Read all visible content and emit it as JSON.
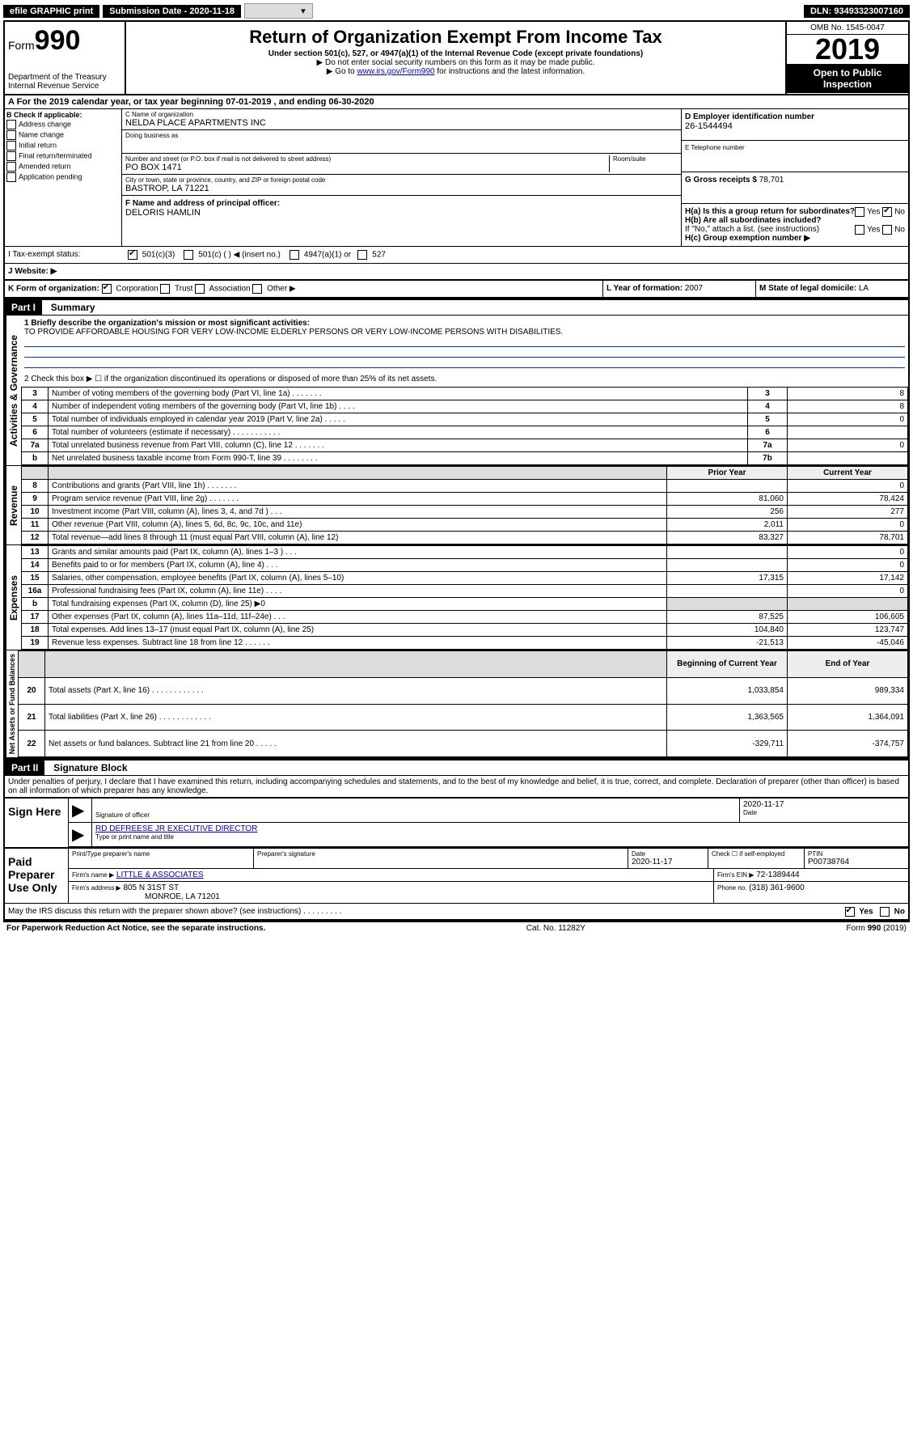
{
  "topbar": {
    "efile": "efile GRAPHIC print",
    "submission": "Submission Date - 2020-11-18",
    "dln": "DLN: 93493323007160"
  },
  "header": {
    "form_label": "Form",
    "form_number": "990",
    "dept": "Department of the Treasury\nInternal Revenue Service",
    "title": "Return of Organization Exempt From Income Tax",
    "subtitle": "Under section 501(c), 527, or 4947(a)(1) of the Internal Revenue Code (except private foundations)",
    "note1": "▶ Do not enter social security numbers on this form as it may be made public.",
    "note2_pre": "▶ Go to ",
    "note2_link": "www.irs.gov/Form990",
    "note2_post": " for instructions and the latest information.",
    "omb": "OMB No. 1545-0047",
    "year": "2019",
    "inspection": "Open to Public Inspection"
  },
  "periodA": "A For the 2019 calendar year, or tax year beginning 07-01-2019    , and ending 06-30-2020",
  "blockB": {
    "title": "B Check if applicable:",
    "opts": [
      "Address change",
      "Name change",
      "Initial return",
      "Final return/terminated",
      "Amended return",
      "Application pending"
    ]
  },
  "entity": {
    "c_label": "C Name of organization",
    "name": "NELDA PLACE APARTMENTS INC",
    "dba_label": "Doing business as",
    "addr_label": "Number and street (or P.O. box if mail is not delivered to street address)",
    "room_label": "Room/suite",
    "addr": "PO BOX 1471",
    "city_label": "City or town, state or province, country, and ZIP or foreign postal code",
    "city": "BASTROP, LA  71221",
    "f_label": "F Name and address of principal officer:",
    "officer": "DELORIS HAMLIN"
  },
  "rightcol": {
    "d_label": "D Employer identification number",
    "ein": "26-1544494",
    "e_label": "E Telephone number",
    "g_label": "G Gross receipts $",
    "g_val": "78,701",
    "ha": "H(a)  Is this a group return for subordinates?",
    "hb": "H(b)  Are all subordinates included?",
    "h_note": "If \"No,\" attach a list. (see instructions)",
    "hc": "H(c)  Group exemption number ▶"
  },
  "rowI": {
    "label": "I    Tax-exempt status:",
    "opt1": "501(c)(3)",
    "opt2": "501(c) (   ) ◀ (insert no.)",
    "opt3": "4947(a)(1) or",
    "opt4": "527"
  },
  "rowJ": {
    "label": "J    Website: ▶"
  },
  "rowK": {
    "label": "K Form of organization:",
    "opts": [
      "Corporation",
      "Trust",
      "Association",
      "Other ▶"
    ],
    "l_label": "L Year of formation:",
    "l_val": "2007",
    "m_label": "M State of legal domicile:",
    "m_val": "LA"
  },
  "part1": {
    "header": "Part I",
    "title": "Summary",
    "q1": "1  Briefly describe the organization's mission or most significant activities:",
    "mission": "TO PROVIDE AFFORDABLE HOUSING FOR VERY LOW-INCOME ELDERLY PERSONS OR VERY LOW-INCOME PERSONS WITH DISABILITIES.",
    "q2": "2   Check this box ▶ ☐  if the organization discontinued its operations or disposed of more than 25% of its net assets.",
    "lines_gov": [
      {
        "n": "3",
        "t": "Number of voting members of the governing body (Part VI, line 1a)   .    .    .    .    .    .    .",
        "b": "3",
        "v": "8"
      },
      {
        "n": "4",
        "t": "Number of independent voting members of the governing body (Part VI, line 1b)   .    .    .    .",
        "b": "4",
        "v": "8"
      },
      {
        "n": "5",
        "t": "Total number of individuals employed in calendar year 2019 (Part V, line 2a)   .    .    .    .    .",
        "b": "5",
        "v": "0"
      },
      {
        "n": "6",
        "t": "Total number of volunteers (estimate if necessary)   .    .    .    .    .    .    .    .    .    .    .",
        "b": "6",
        "v": ""
      },
      {
        "n": "7a",
        "t": "Total unrelated business revenue from Part VIII, column (C), line 12   .    .    .    .    .    .    .",
        "b": "7a",
        "v": "0"
      },
      {
        "n": "b",
        "t": "Net unrelated business taxable income from Form 990-T, line 39   .    .    .    .    .    .    .    .",
        "b": "7b",
        "v": ""
      }
    ],
    "col_prior": "Prior Year",
    "col_current": "Current Year",
    "revenue": [
      {
        "n": "8",
        "t": "Contributions and grants (Part VIII, line 1h)   .    .    .    .    .    .    .",
        "p": "",
        "c": "0"
      },
      {
        "n": "9",
        "t": "Program service revenue (Part VIII, line 2g)   .    .    .    .    .    .    .",
        "p": "81,060",
        "c": "78,424"
      },
      {
        "n": "10",
        "t": "Investment income (Part VIII, column (A), lines 3, 4, and 7d )   .    .    .",
        "p": "256",
        "c": "277"
      },
      {
        "n": "11",
        "t": "Other revenue (Part VIII, column (A), lines 5, 6d, 8c, 9c, 10c, and 11e)",
        "p": "2,011",
        "c": "0"
      },
      {
        "n": "12",
        "t": "Total revenue—add lines 8 through 11 (must equal Part VIII, column (A), line 12)",
        "p": "83,327",
        "c": "78,701"
      }
    ],
    "expenses": [
      {
        "n": "13",
        "t": "Grants and similar amounts paid (Part IX, column (A), lines 1–3 )   .    .    .",
        "p": "",
        "c": "0"
      },
      {
        "n": "14",
        "t": "Benefits paid to or for members (Part IX, column (A), line 4)   .    .    .",
        "p": "",
        "c": "0"
      },
      {
        "n": "15",
        "t": "Salaries, other compensation, employee benefits (Part IX, column (A), lines 5–10)",
        "p": "17,315",
        "c": "17,142"
      },
      {
        "n": "16a",
        "t": "Professional fundraising fees (Part IX, column (A), line 11e)   .    .    .    .",
        "p": "",
        "c": "0"
      },
      {
        "n": "b",
        "t": "Total fundraising expenses (Part IX, column (D), line 25) ▶0",
        "p": "gray",
        "c": "gray"
      },
      {
        "n": "17",
        "t": "Other expenses (Part IX, column (A), lines 11a–11d, 11f–24e)   .    .    .",
        "p": "87,525",
        "c": "106,605"
      },
      {
        "n": "18",
        "t": "Total expenses. Add lines 13–17 (must equal Part IX, column (A), line 25)",
        "p": "104,840",
        "c": "123,747"
      },
      {
        "n": "19",
        "t": "Revenue less expenses. Subtract line 18 from line 12   .    .    .    .    .    .",
        "p": "-21,513",
        "c": "-45,046"
      }
    ],
    "col_begin": "Beginning of Current Year",
    "col_end": "End of Year",
    "netassets": [
      {
        "n": "20",
        "t": "Total assets (Part X, line 16)   .    .    .    .    .    .    .    .    .    .    .    .",
        "p": "1,033,854",
        "c": "989,334"
      },
      {
        "n": "21",
        "t": "Total liabilities (Part X, line 26)   .    .    .    .    .    .    .    .    .    .    .    .",
        "p": "1,363,565",
        "c": "1,364,091"
      },
      {
        "n": "22",
        "t": "Net assets or fund balances. Subtract line 21 from line 20   .    .    .    .    .",
        "p": "-329,711",
        "c": "-374,757"
      }
    ],
    "vtext_gov": "Activities & Governance",
    "vtext_rev": "Revenue",
    "vtext_exp": "Expenses",
    "vtext_net": "Net Assets or Fund Balances"
  },
  "part2": {
    "header": "Part II",
    "title": "Signature Block",
    "perjury": "Under penalties of perjury, I declare that I have examined this return, including accompanying schedules and statements, and to the best of my knowledge and belief, it is true, correct, and complete. Declaration of preparer (other than officer) is based on all information of which preparer has any knowledge.",
    "sign_here": "Sign Here",
    "sig_officer": "Signature of officer",
    "sig_date": "2020-11-17",
    "date_label": "Date",
    "officer_name": "RD DEFREESE JR EXECUTIVE DIRECTOR",
    "type_label": "Type or print name and title",
    "paid": "Paid Preparer Use Only",
    "prep_name_label": "Print/Type preparer's name",
    "prep_sig_label": "Preparer's signature",
    "prep_date": "2020-11-17",
    "check_label": "Check ☐ if self-employed",
    "ptin_label": "PTIN",
    "ptin": "P00738764",
    "firm_name_label": "Firm's name    ▶",
    "firm_name": "LITTLE & ASSOCIATES",
    "firm_ein_label": "Firm's EIN ▶",
    "firm_ein": "72-1389444",
    "firm_addr_label": "Firm's address ▶",
    "firm_addr": "805 N 31ST ST",
    "firm_city": "MONROE, LA  71201",
    "phone_label": "Phone no.",
    "phone": "(318) 361-9600",
    "discuss": "May the IRS discuss this return with the preparer shown above? (see instructions)   .    .    .    .    .    .    .    .    .",
    "yes": "Yes",
    "no": "No"
  },
  "footer": {
    "pra": "For Paperwork Reduction Act Notice, see the separate instructions.",
    "cat": "Cat. No. 11282Y",
    "form": "Form 990 (2019)"
  }
}
